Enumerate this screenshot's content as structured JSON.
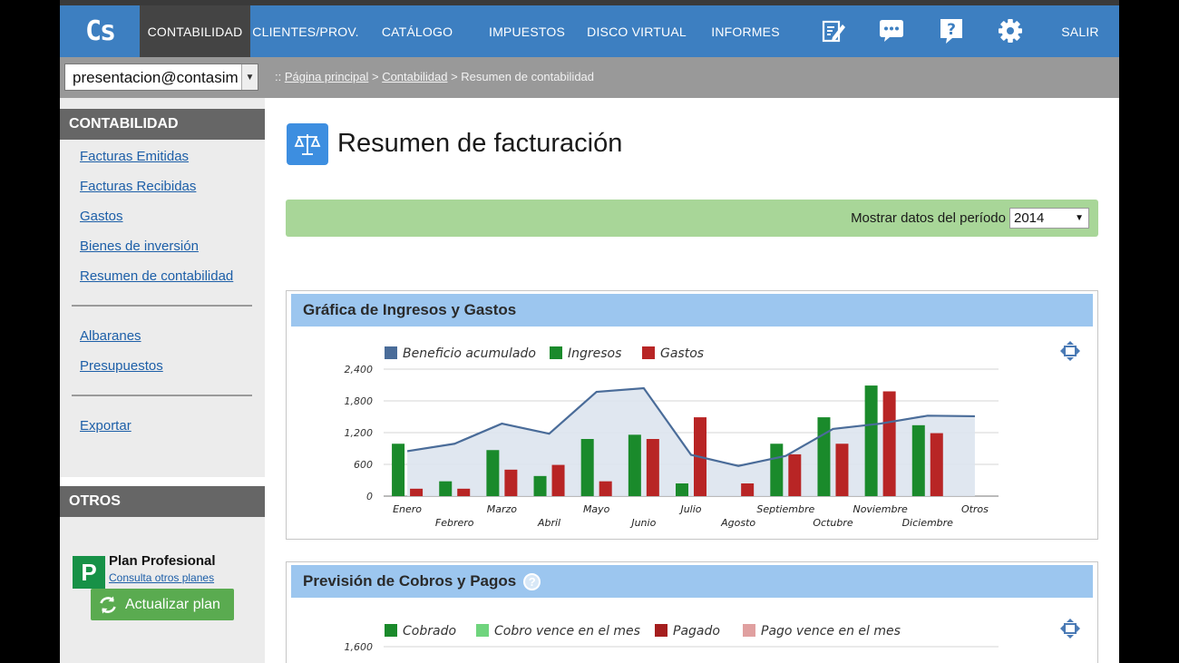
{
  "app": {
    "logo": "Cs",
    "nav": [
      "CONTABILIDAD",
      "CLIENTES/PROV.",
      "CATÁLOGO",
      "IMPUESTOS",
      "DISCO VIRTUAL",
      "INFORMES"
    ],
    "exit_label": "SALIR",
    "toolbar_icons": [
      "edit-icon",
      "chat-icon",
      "help-icon",
      "gear-icon"
    ]
  },
  "user": {
    "email": "presentacion@contasim"
  },
  "breadcrumb": {
    "prefix": ":: ",
    "items": [
      "Página principal",
      "Contabilidad"
    ],
    "sep": " > ",
    "current": "Resumen de contabilidad"
  },
  "sidebar": {
    "section1": "CONTABILIDAD",
    "links1": [
      "Facturas Emitidas",
      "Facturas Recibidas",
      "Gastos",
      "Bienes de inversión",
      "Resumen de contabilidad"
    ],
    "links2": [
      "Albaranes",
      "Presupuestos"
    ],
    "links3": [
      "Exportar"
    ],
    "section2": "OTROS",
    "plan": {
      "badge": "P",
      "title": "Plan Profesional",
      "link": "Consulta otros planes",
      "button": "Actualizar plan"
    }
  },
  "page": {
    "title": "Resumen de facturación",
    "period_label": "Mostrar datos del período",
    "period_value": "2014"
  },
  "panels": {
    "chart1_title": "Gráfica de Ingresos y Gastos",
    "chart2_title": "Previsión de Cobros y Pagos",
    "chart2_help": "?",
    "chart2_legend": [
      "Cobrado",
      "Cobro vence en el mes",
      "Pagado",
      "Pago vence en el mes"
    ],
    "chart2_colors": [
      "#1a8a2b",
      "#6fd47d",
      "#a51e1e",
      "#e0a0a0"
    ],
    "chart2_first_tick": "1,600"
  },
  "chart_data": {
    "type": "bar",
    "title": "Gráfica de Ingresos y Gastos",
    "categories": [
      "Enero",
      "Febrero",
      "Marzo",
      "Abril",
      "Mayo",
      "Junio",
      "Julio",
      "Agosto",
      "Septiembre",
      "Octubre",
      "Noviembre",
      "Diciembre",
      "Otros"
    ],
    "series": [
      {
        "name": "Ingresos",
        "kind": "bar",
        "color": "#1a8a2b",
        "values": [
          990,
          280,
          870,
          380,
          1080,
          1160,
          240,
          0,
          990,
          1490,
          2090,
          1340,
          null
        ]
      },
      {
        "name": "Gastos",
        "kind": "bar",
        "color": "#b82525",
        "values": [
          140,
          140,
          500,
          590,
          280,
          1080,
          1490,
          240,
          790,
          990,
          1980,
          1190,
          null
        ]
      },
      {
        "name": "Beneficio acumulado",
        "kind": "line",
        "color": "#4a6c99",
        "values": [
          850,
          990,
          1370,
          1180,
          1970,
          2040,
          780,
          570,
          760,
          1270,
          1370,
          1520,
          1510
        ]
      }
    ],
    "yticks": [
      "2,400",
      "1,800",
      "1,200",
      "600",
      "0"
    ],
    "ylim": [
      0,
      2400
    ],
    "grid": true,
    "legend": "top-left"
  }
}
